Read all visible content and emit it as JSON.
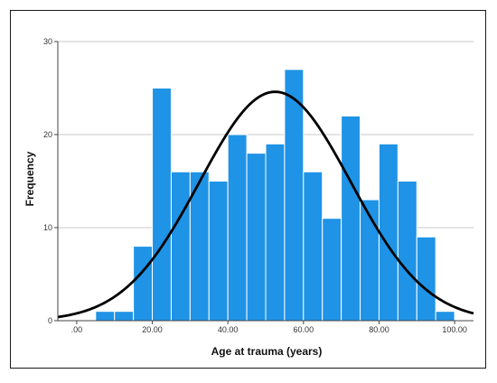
{
  "chart_data": {
    "type": "bar",
    "title": "",
    "xlabel": "Age at trauma (years)",
    "ylabel": "Frequency",
    "xlim": [
      -5,
      105
    ],
    "ylim": [
      0,
      30
    ],
    "x_tick_labels": [
      ".00",
      "20.00",
      "40.00",
      "60.00",
      "80.00",
      "100.00"
    ],
    "x_tick_values": [
      0,
      20,
      40,
      60,
      80,
      100
    ],
    "y_tick_labels": [
      "0",
      "10",
      "20",
      "30"
    ],
    "y_tick_values": [
      0,
      10,
      20,
      30
    ],
    "bin_width": 5,
    "bin_starts": [
      5,
      10,
      15,
      20,
      25,
      30,
      35,
      40,
      45,
      50,
      55,
      60,
      65,
      70,
      75,
      80,
      85,
      90,
      95
    ],
    "values": [
      1,
      1,
      8,
      25,
      16,
      16,
      15,
      20,
      18,
      19,
      27,
      16,
      11,
      22,
      13,
      19,
      15,
      9,
      1
    ],
    "normal_curve": {
      "mean": 52.5,
      "sd": 20,
      "peak": 24.6
    },
    "grid": "horizontal",
    "bar_color": "#1f93e6",
    "curve_color": "#000000"
  }
}
